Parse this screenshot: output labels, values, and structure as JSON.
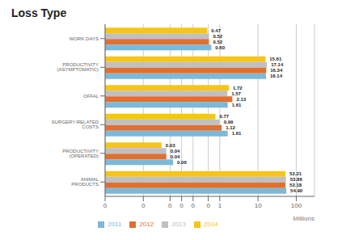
{
  "chart_data": {
    "type": "bar",
    "orientation": "horizontal",
    "title": "Loss Type",
    "xlabel": "Millions",
    "log": "x",
    "grid": true,
    "legend": "bottom",
    "data_labels": true,
    "categories": [
      "ANIMAL PRODUCTS",
      "PRODUCTIVITY (OPERATED)",
      "SURGERY-RELATED COSTS",
      "OFFAL",
      "PRODUCTIVITY (ASYMPTOMATIC)",
      "WORK DAYS"
    ],
    "series": [
      {
        "name": "2014",
        "color": "#F5C518",
        "values": [
          52.21,
          0.03,
          0.77,
          1.72,
          15.61,
          0.47
        ],
        "value_labels": [
          "52.21",
          "0.03",
          "0.77",
          "1.72",
          "15.61",
          "0.47"
        ]
      },
      {
        "name": "2013",
        "color": "#C0C0C0",
        "values": [
          53.86,
          0.04,
          0.99,
          1.57,
          17.14,
          0.52
        ],
        "value_labels": [
          "53.86",
          "0.04",
          "0.99",
          "1.57",
          "17.14",
          "0.52"
        ]
      },
      {
        "name": "2012",
        "color": "#E07030",
        "values": [
          52.18,
          0.04,
          1.12,
          2.13,
          16.34,
          0.52
        ],
        "value_labels": [
          "52.18",
          "0.04",
          "1.12",
          "2.13",
          "16.34",
          "0.52"
        ]
      },
      {
        "name": "2011",
        "color": "#7EB8D8",
        "values": [
          54.9,
          0.06,
          1.61,
          1.61,
          16.14,
          0.6
        ],
        "value_labels": [
          "54.90",
          "0.06",
          "1.61",
          "1.61",
          "16.14",
          "0.60"
        ]
      }
    ],
    "xlim": [
      0.001,
      300
    ],
    "xticks": [
      {
        "value": 0.001,
        "label": "0"
      },
      {
        "value": 0.01,
        "label": "0"
      },
      {
        "value": 0.05,
        "label": "0"
      },
      {
        "value": 0.1,
        "label": "0"
      },
      {
        "value": 0.2,
        "label": "0"
      },
      {
        "value": 0.5,
        "label": "0"
      },
      1,
      10,
      100
    ]
  }
}
